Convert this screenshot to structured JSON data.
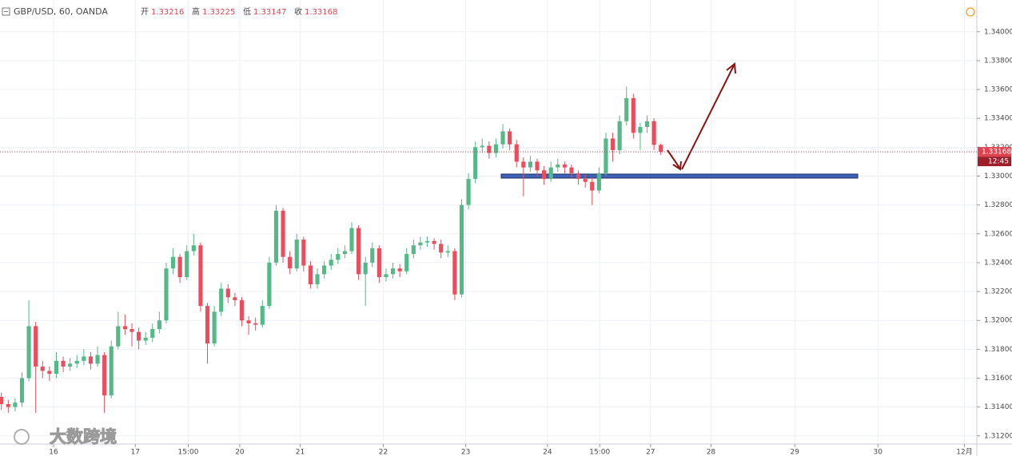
{
  "chart_data": {
    "type": "candlestick",
    "symbol": "GBP/USD, 60, OANDA",
    "ohlc_legend": [
      {
        "label": "开",
        "value": 1.33216
      },
      {
        "label": "高",
        "value": 1.33225
      },
      {
        "label": "低",
        "value": 1.33147
      },
      {
        "label": "收",
        "value": 1.33168
      }
    ],
    "last_price": 1.33168,
    "countdown": "12:45",
    "watermark": "大数跨境",
    "up_color": "#53b987",
    "down_color": "#eb4d5c",
    "grid": true,
    "xlim": [
      -0.2,
      142
    ],
    "ylim": [
      1.3116,
      1.3422
    ],
    "yticks": [
      {
        "value": 1.34,
        "label": "1.34000"
      },
      {
        "value": 1.338,
        "label": "1.33800"
      },
      {
        "value": 1.336,
        "label": "1.33600"
      },
      {
        "value": 1.334,
        "label": "1.33400"
      },
      {
        "value": 1.332,
        "label": "1.33200"
      },
      {
        "value": 1.33,
        "label": "1.33000"
      },
      {
        "value": 1.328,
        "label": "1.32800"
      },
      {
        "value": 1.326,
        "label": "1.32600"
      },
      {
        "value": 1.324,
        "label": "1.32400"
      },
      {
        "value": 1.322,
        "label": "1.32200"
      },
      {
        "value": 1.32,
        "label": "1.32000"
      },
      {
        "value": 1.318,
        "label": "1.31800"
      },
      {
        "value": 1.316,
        "label": "1.31600"
      },
      {
        "value": 1.314,
        "label": "1.31400"
      },
      {
        "value": 1.312,
        "label": "1.31200"
      }
    ],
    "xticks": [
      {
        "value": 7.6,
        "label": "16"
      },
      {
        "value": 19.5,
        "label": "17"
      },
      {
        "value": 27.2,
        "label": "15:00"
      },
      {
        "value": 34.7,
        "label": "20"
      },
      {
        "value": 43.5,
        "label": "21"
      },
      {
        "value": 55.6,
        "label": "22"
      },
      {
        "value": 67.6,
        "label": "23"
      },
      {
        "value": 79.5,
        "label": "24"
      },
      {
        "value": 87.1,
        "label": "15:00"
      },
      {
        "value": 94.5,
        "label": "27"
      },
      {
        "value": 103.3,
        "label": "28"
      },
      {
        "value": 115.5,
        "label": "29"
      },
      {
        "value": 127.6,
        "label": "30"
      },
      {
        "value": 140.2,
        "label": "12月"
      }
    ],
    "x": [
      0,
      1,
      2,
      3,
      4,
      5,
      6,
      7,
      8,
      9,
      10,
      11,
      12,
      13,
      14,
      15,
      16,
      17,
      18,
      19,
      20,
      21,
      22,
      23,
      24,
      25,
      26,
      27,
      28,
      29,
      30,
      31,
      32,
      33,
      34,
      35,
      36,
      37,
      38,
      39,
      40,
      41,
      42,
      43,
      44,
      45,
      46,
      47,
      48,
      49,
      50,
      51,
      52,
      53,
      54,
      55,
      56,
      57,
      58,
      59,
      60,
      61,
      62,
      63,
      64,
      65,
      66,
      67,
      68,
      69,
      70,
      71,
      72,
      73,
      74,
      75,
      76,
      77,
      78,
      79,
      80,
      81,
      82,
      83,
      84,
      85,
      86,
      87,
      88,
      89,
      90,
      91,
      92,
      93,
      94,
      95,
      96
    ],
    "candles": [
      [
        1.3147,
        1.315,
        1.3138,
        1.3142
      ],
      [
        1.3142,
        1.3145,
        1.3136,
        1.314
      ],
      [
        1.314,
        1.3146,
        1.3137,
        1.3143
      ],
      [
        1.3143,
        1.3164,
        1.314,
        1.316
      ],
      [
        1.316,
        1.3214,
        1.3158,
        1.3196
      ],
      [
        1.3196,
        1.3199,
        1.3136,
        1.3168
      ],
      [
        1.3168,
        1.3172,
        1.316,
        1.3165
      ],
      [
        1.3165,
        1.3168,
        1.3158,
        1.3163
      ],
      [
        1.3163,
        1.3178,
        1.316,
        1.3172
      ],
      [
        1.3172,
        1.3175,
        1.3164,
        1.3168
      ],
      [
        1.3168,
        1.3174,
        1.3165,
        1.317
      ],
      [
        1.317,
        1.3176,
        1.3167,
        1.3172
      ],
      [
        1.3172,
        1.318,
        1.3169,
        1.3175
      ],
      [
        1.3175,
        1.3178,
        1.3166,
        1.317
      ],
      [
        1.317,
        1.3182,
        1.3168,
        1.3176
      ],
      [
        1.3176,
        1.3178,
        1.3136,
        1.3148
      ],
      [
        1.3148,
        1.3186,
        1.3146,
        1.3182
      ],
      [
        1.3182,
        1.3206,
        1.318,
        1.3196
      ],
      [
        1.3196,
        1.3204,
        1.319,
        1.3194
      ],
      [
        1.3194,
        1.3198,
        1.3182,
        1.3192
      ],
      [
        1.3192,
        1.3195,
        1.318,
        1.3186
      ],
      [
        1.3186,
        1.3192,
        1.3183,
        1.3188
      ],
      [
        1.3188,
        1.3198,
        1.3185,
        1.3194
      ],
      [
        1.3194,
        1.3206,
        1.3191,
        1.32
      ],
      [
        1.32,
        1.324,
        1.3198,
        1.3236
      ],
      [
        1.3236,
        1.325,
        1.3232,
        1.3244
      ],
      [
        1.3244,
        1.3246,
        1.3226,
        1.323
      ],
      [
        1.323,
        1.3252,
        1.3228,
        1.3248
      ],
      [
        1.3248,
        1.326,
        1.3245,
        1.3252
      ],
      [
        1.3252,
        1.3254,
        1.3206,
        1.321
      ],
      [
        1.321,
        1.3212,
        1.317,
        1.3184
      ],
      [
        1.3184,
        1.321,
        1.3182,
        1.3206
      ],
      [
        1.3206,
        1.3226,
        1.3203,
        1.3222
      ],
      [
        1.3222,
        1.3225,
        1.3212,
        1.3216
      ],
      [
        1.3216,
        1.3219,
        1.321,
        1.3214
      ],
      [
        1.3214,
        1.3216,
        1.3196,
        1.32
      ],
      [
        1.32,
        1.3203,
        1.319,
        1.3198
      ],
      [
        1.3198,
        1.3202,
        1.3193,
        1.3197
      ],
      [
        1.3197,
        1.3214,
        1.3195,
        1.321
      ],
      [
        1.321,
        1.3244,
        1.3208,
        1.324
      ],
      [
        1.324,
        1.328,
        1.3238,
        1.3276
      ],
      [
        1.3276,
        1.3278,
        1.324,
        1.3244
      ],
      [
        1.3244,
        1.3248,
        1.3232,
        1.3236
      ],
      [
        1.3236,
        1.326,
        1.3234,
        1.3256
      ],
      [
        1.3256,
        1.3258,
        1.3234,
        1.3238
      ],
      [
        1.3238,
        1.3241,
        1.3222,
        1.3225
      ],
      [
        1.3225,
        1.3236,
        1.3222,
        1.3232
      ],
      [
        1.3232,
        1.3241,
        1.3229,
        1.3238
      ],
      [
        1.3238,
        1.3246,
        1.3235,
        1.3242
      ],
      [
        1.3242,
        1.325,
        1.3239,
        1.3246
      ],
      [
        1.3246,
        1.3252,
        1.3243,
        1.3248
      ],
      [
        1.3248,
        1.3268,
        1.3246,
        1.3264
      ],
      [
        1.3264,
        1.3266,
        1.3228,
        1.3232
      ],
      [
        1.3232,
        1.3244,
        1.321,
        1.324
      ],
      [
        1.324,
        1.3254,
        1.3237,
        1.325
      ],
      [
        1.325,
        1.3252,
        1.3226,
        1.323
      ],
      [
        1.323,
        1.3236,
        1.3227,
        1.3232
      ],
      [
        1.3232,
        1.324,
        1.3229,
        1.3236
      ],
      [
        1.3236,
        1.3239,
        1.323,
        1.3234
      ],
      [
        1.3234,
        1.325,
        1.3232,
        1.3246
      ],
      [
        1.3246,
        1.3256,
        1.3243,
        1.3252
      ],
      [
        1.3252,
        1.3258,
        1.3249,
        1.3254
      ],
      [
        1.3254,
        1.3258,
        1.3251,
        1.3255
      ],
      [
        1.3255,
        1.3257,
        1.3249,
        1.3253
      ],
      [
        1.3253,
        1.3256,
        1.3243,
        1.3247
      ],
      [
        1.3247,
        1.3252,
        1.3244,
        1.3248
      ],
      [
        1.3248,
        1.325,
        1.3214,
        1.3218
      ],
      [
        1.3218,
        1.3284,
        1.3216,
        1.328
      ],
      [
        1.328,
        1.3302,
        1.3277,
        1.3298
      ],
      [
        1.3298,
        1.3324,
        1.3295,
        1.332
      ],
      [
        1.332,
        1.3326,
        1.3316,
        1.3321
      ],
      [
        1.3321,
        1.3324,
        1.3312,
        1.3316
      ],
      [
        1.3316,
        1.3326,
        1.3313,
        1.3322
      ],
      [
        1.3322,
        1.3336,
        1.3319,
        1.3331
      ],
      [
        1.3331,
        1.3333,
        1.3318,
        1.3322
      ],
      [
        1.3322,
        1.3325,
        1.3306,
        1.331
      ],
      [
        1.331,
        1.3313,
        1.3286,
        1.3306
      ],
      [
        1.3306,
        1.3314,
        1.3303,
        1.331
      ],
      [
        1.331,
        1.3312,
        1.33,
        1.3304
      ],
      [
        1.3304,
        1.3307,
        1.3294,
        1.3298
      ],
      [
        1.3298,
        1.331,
        1.3296,
        1.3306
      ],
      [
        1.3306,
        1.3312,
        1.3303,
        1.3308
      ],
      [
        1.3308,
        1.331,
        1.3302,
        1.3306
      ],
      [
        1.3306,
        1.3308,
        1.3298,
        1.3302
      ],
      [
        1.3302,
        1.3304,
        1.3294,
        1.3298
      ],
      [
        1.3298,
        1.3301,
        1.3292,
        1.3296
      ],
      [
        1.3296,
        1.3299,
        1.328,
        1.329
      ],
      [
        1.329,
        1.3306,
        1.3288,
        1.3302
      ],
      [
        1.3302,
        1.333,
        1.33,
        1.3326
      ],
      [
        1.3326,
        1.333,
        1.331,
        1.3318
      ],
      [
        1.3318,
        1.3342,
        1.3315,
        1.3338
      ],
      [
        1.3338,
        1.3362,
        1.3335,
        1.3354
      ],
      [
        1.3354,
        1.3357,
        1.3326,
        1.333
      ],
      [
        1.333,
        1.3337,
        1.3318,
        1.3334
      ],
      [
        1.3334,
        1.3342,
        1.333,
        1.3338
      ],
      [
        1.3338,
        1.334,
        1.3318,
        1.33216
      ],
      [
        1.33216,
        1.33225,
        1.33147,
        1.33168
      ]
    ]
  }
}
